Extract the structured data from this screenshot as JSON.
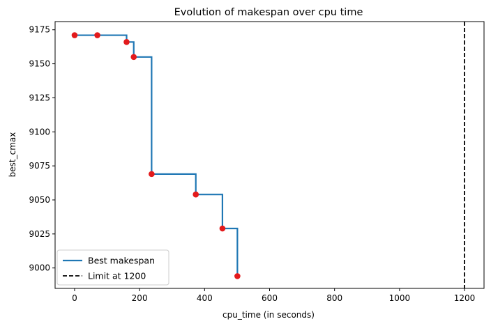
{
  "chart_data": {
    "type": "line",
    "title": "Evolution of makespan over cpu time",
    "xlabel": "cpu_time (in seconds)",
    "ylabel": "best_cmax",
    "xlim": [
      -60,
      1260
    ],
    "ylim": [
      8985,
      9181
    ],
    "x_ticks": [
      0,
      200,
      400,
      600,
      800,
      1000,
      1200
    ],
    "y_ticks": [
      9000,
      9025,
      9050,
      9075,
      9100,
      9125,
      9150,
      9175
    ],
    "series": [
      {
        "name": "Best makespan",
        "style": "step-post",
        "color": "#1f77b4",
        "x": [
          0,
          70,
          160,
          182,
          237,
          373,
          455,
          501
        ],
        "y": [
          9171,
          9171,
          9166,
          9155,
          9069,
          9054,
          9029,
          8994
        ]
      }
    ],
    "points": {
      "color": "#e31a1c",
      "x": [
        0,
        70,
        160,
        182,
        237,
        373,
        455,
        501
      ],
      "y": [
        9171,
        9171,
        9166,
        9155,
        9069,
        9054,
        9029,
        8994
      ]
    },
    "limit": {
      "name": "Limit at 1200",
      "x": 1200,
      "color": "#000000",
      "style": "dashed"
    },
    "legend_position": "lower-left",
    "grid": false
  }
}
